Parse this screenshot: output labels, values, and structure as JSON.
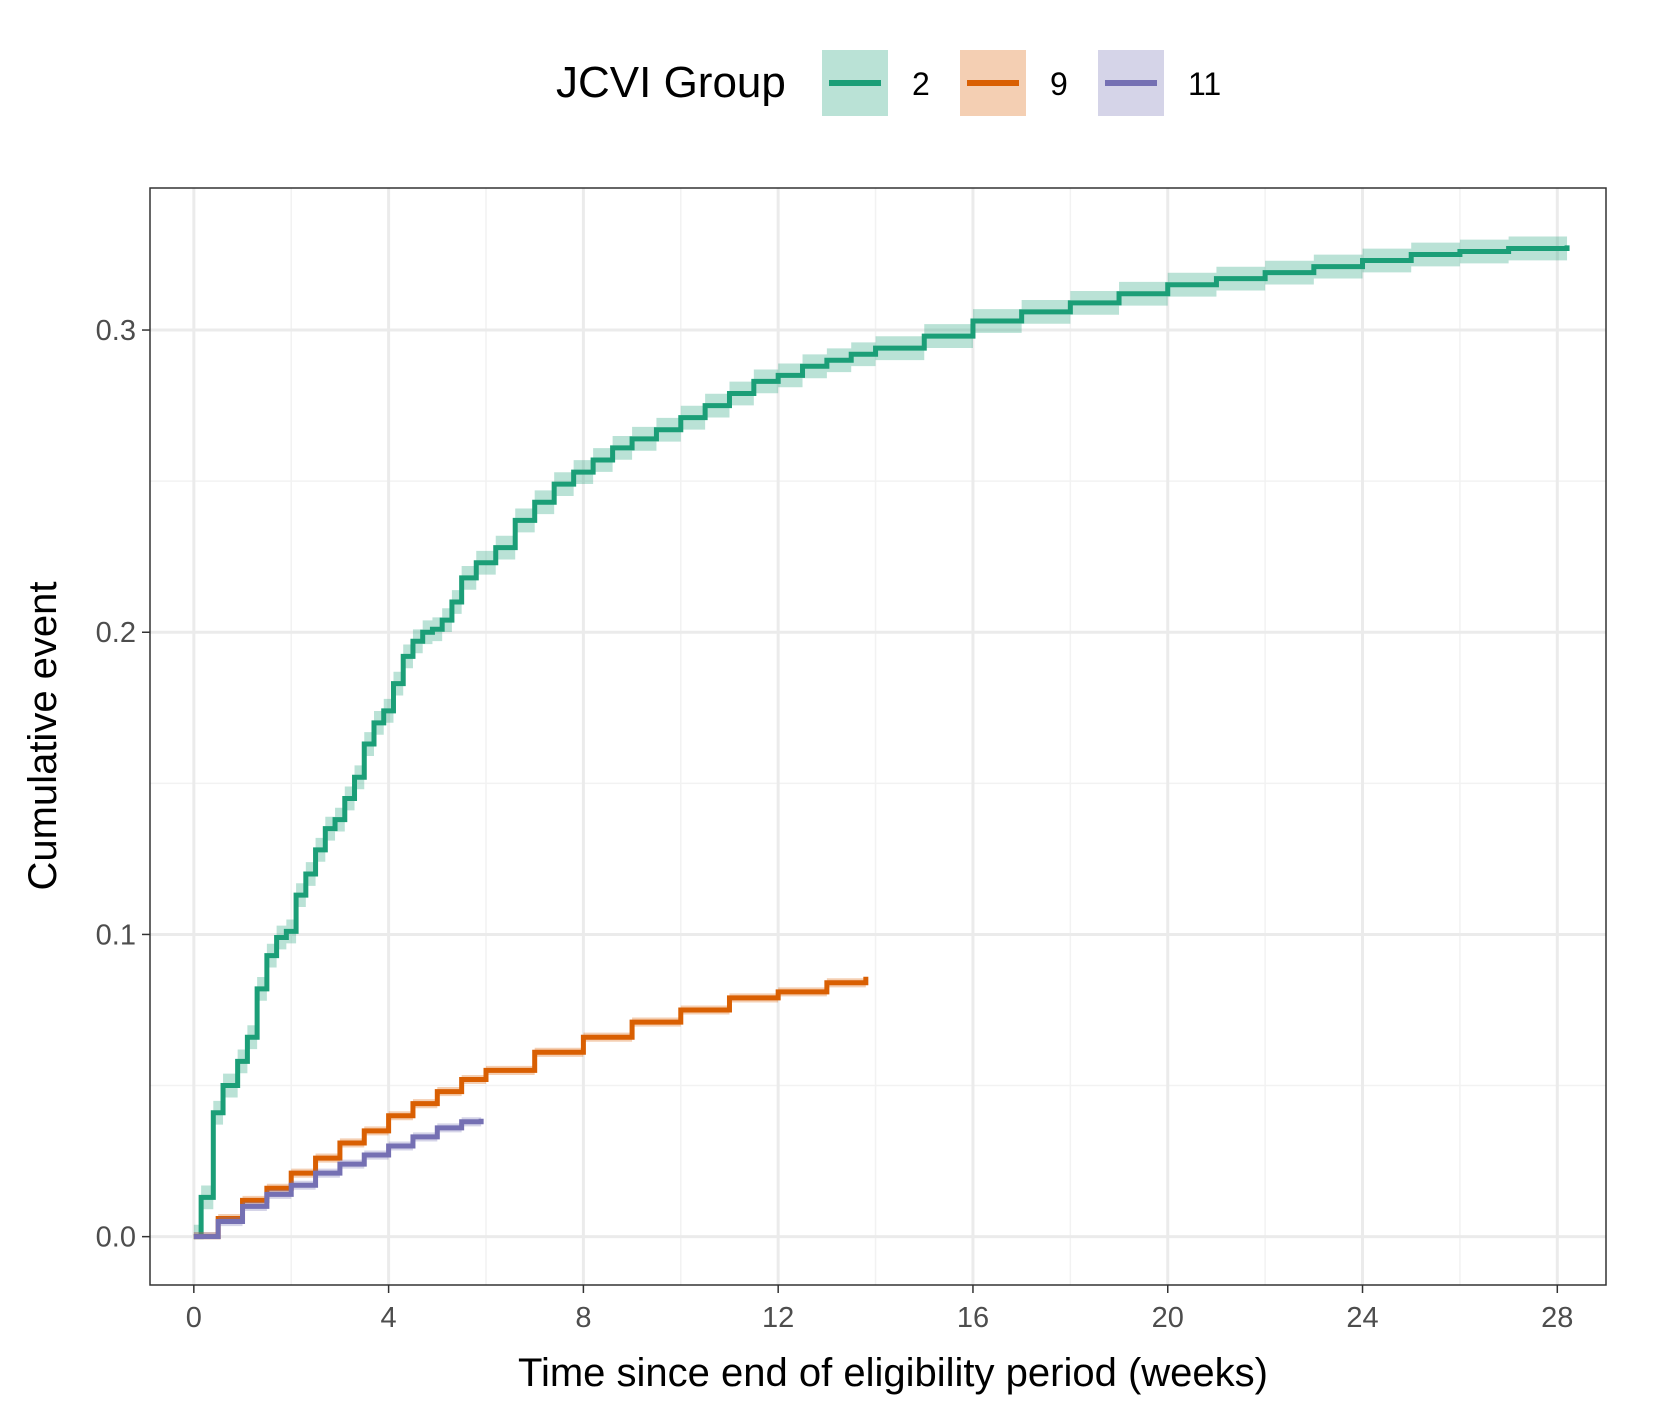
{
  "chart_data": {
    "type": "line",
    "step": true,
    "xlabel": "Time since end of eligibility period (weeks)",
    "ylabel": "Cumulative event",
    "xlim": [
      -0.9,
      29.0
    ],
    "ylim": [
      -0.016,
      0.347
    ],
    "x_ticks": [
      0,
      4,
      8,
      12,
      16,
      20,
      24,
      28
    ],
    "x_tick_labels": [
      "0",
      "4",
      "8",
      "12",
      "16",
      "20",
      "24",
      "28"
    ],
    "y_ticks": [
      0.0,
      0.1,
      0.2,
      0.3
    ],
    "y_tick_labels": [
      "0.0",
      "0.1",
      "0.2",
      "0.3"
    ],
    "grid": true,
    "legend": {
      "title": "JCVI Group",
      "position": "top",
      "entries": [
        "2",
        "9",
        "11"
      ]
    },
    "colors": {
      "2": "#1b9e77",
      "9": "#d95f02",
      "11": "#7570b3"
    },
    "series": [
      {
        "name": "2",
        "x": [
          0,
          0.15,
          0.4,
          0.6,
          0.9,
          1.1,
          1.3,
          1.5,
          1.7,
          1.9,
          2.1,
          2.3,
          2.5,
          2.7,
          2.9,
          3.1,
          3.3,
          3.5,
          3.7,
          3.9,
          4.1,
          4.3,
          4.5,
          4.7,
          4.9,
          5.1,
          5.3,
          5.5,
          5.8,
          6.2,
          6.6,
          7.0,
          7.4,
          7.8,
          8.2,
          8.6,
          9.0,
          9.5,
          10.0,
          10.5,
          11.0,
          11.5,
          12.0,
          12.5,
          13.0,
          13.5,
          14.0,
          15.0,
          16.0,
          17.0,
          18.0,
          19.0,
          20.0,
          21.0,
          22.0,
          23.0,
          24.0,
          25.0,
          26.0,
          27.0,
          28.2
        ],
        "y": [
          0.0,
          0.013,
          0.041,
          0.05,
          0.058,
          0.066,
          0.082,
          0.093,
          0.099,
          0.101,
          0.113,
          0.12,
          0.128,
          0.135,
          0.138,
          0.145,
          0.152,
          0.163,
          0.17,
          0.174,
          0.183,
          0.192,
          0.197,
          0.2,
          0.201,
          0.204,
          0.21,
          0.218,
          0.223,
          0.228,
          0.237,
          0.243,
          0.249,
          0.253,
          0.257,
          0.261,
          0.264,
          0.267,
          0.271,
          0.275,
          0.279,
          0.283,
          0.285,
          0.288,
          0.29,
          0.292,
          0.294,
          0.298,
          0.303,
          0.306,
          0.309,
          0.312,
          0.315,
          0.317,
          0.319,
          0.321,
          0.323,
          0.325,
          0.326,
          0.327,
          0.328
        ]
      },
      {
        "name": "9",
        "x": [
          0,
          0.5,
          1.0,
          1.5,
          2.0,
          2.5,
          3.0,
          3.5,
          4.0,
          4.5,
          5.0,
          5.5,
          6.0,
          7.0,
          8.0,
          9.0,
          10.0,
          11.0,
          12.0,
          13.0,
          13.8
        ],
        "y": [
          0.0,
          0.006,
          0.012,
          0.016,
          0.021,
          0.026,
          0.031,
          0.035,
          0.04,
          0.044,
          0.048,
          0.052,
          0.055,
          0.061,
          0.066,
          0.071,
          0.075,
          0.079,
          0.081,
          0.084,
          0.086
        ]
      },
      {
        "name": "11",
        "x": [
          0,
          0.5,
          1.0,
          1.5,
          2.0,
          2.5,
          3.0,
          3.5,
          4.0,
          4.5,
          5.0,
          5.5,
          5.9
        ],
        "y": [
          0.0,
          0.005,
          0.01,
          0.014,
          0.017,
          0.021,
          0.024,
          0.027,
          0.03,
          0.033,
          0.036,
          0.038,
          0.039
        ]
      }
    ]
  }
}
